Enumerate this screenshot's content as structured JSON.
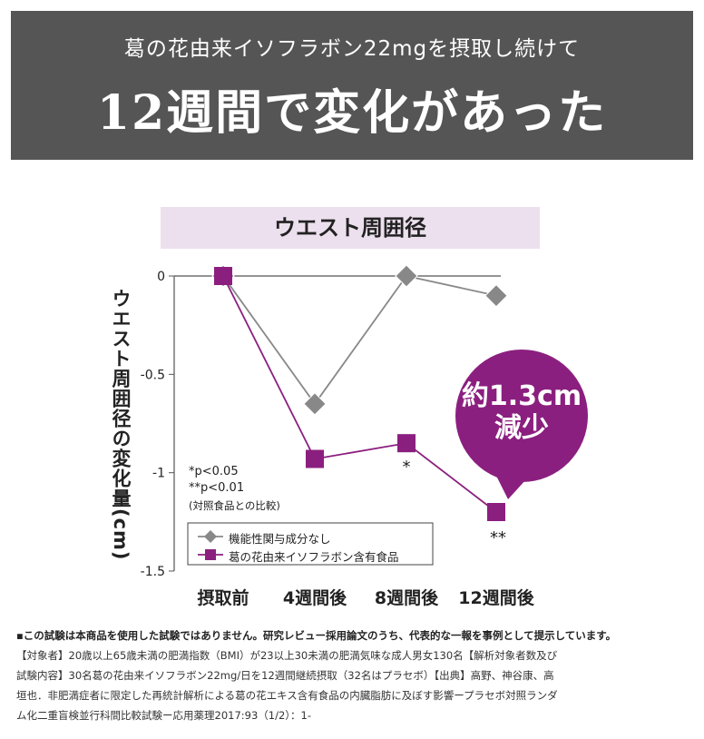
{
  "header": {
    "subtitle": "葛の花由来イソフラボン22mgを摂取し続けて",
    "title": "12週間で変化があった"
  },
  "chart_heading": "ウエスト周囲径",
  "callout": {
    "line1": "約1.3cm",
    "line2": "減少"
  },
  "significance": [
    "*p<0.05",
    "**p<0.01",
    "(対照食品との比較)"
  ],
  "point_markers": {
    "week8": "*",
    "week12": "**"
  },
  "colors": {
    "control": "#888888",
    "test": "#8b1f7f",
    "banner": "#555555",
    "heading_bg": "#ede0ee"
  },
  "chart_data": {
    "type": "line",
    "title": "ウエスト周囲径",
    "xlabel": "",
    "ylabel": "ウエスト周囲径の変化量(cm)",
    "categories": [
      "摂取前",
      "4週間後",
      "8週間後",
      "12週間後"
    ],
    "ylim": [
      -1.5,
      0
    ],
    "yticks": [
      "0",
      "-0.5",
      "-1",
      "-1.5"
    ],
    "ytick_values": [
      0,
      -0.5,
      -1,
      -1.5
    ],
    "grid": false,
    "legend_position": "bottom-left",
    "series": [
      {
        "name": "機能性関与成分なし",
        "values": [
          0,
          -0.65,
          0,
          -0.1
        ],
        "marker": "diamond"
      },
      {
        "name": "葛の花由来イソフラボン含有食品",
        "values": [
          0,
          -0.93,
          -0.85,
          -1.2
        ],
        "marker": "square"
      }
    ]
  },
  "footnote": {
    "line1": "▪この試験は本商品を使用した試験ではありません。研究レビュー採用論文のうち、代表的な一報を事例として提示しています。",
    "line2": "【対象者】20歳以上65歳未満の肥満指数（BMI）が23以上30未満の肥満気味な成人男女130名【解析対象者数及び",
    "line3": "試験内容】30名葛の花由来イソフラボン22mg/日を12週間継続摂取（32名はプラセボ）【出典】高野、神谷康、高",
    "line4": "垣也．非肥満症者に限定した再統計解析による葛の花エキス含有食品の内臓脂肪に及ぼす影響ープラセボ対照ランダ",
    "line5": "ム化二重盲検並行科間比較試験ー応用薬理2017:93（1/2）：1-"
  }
}
